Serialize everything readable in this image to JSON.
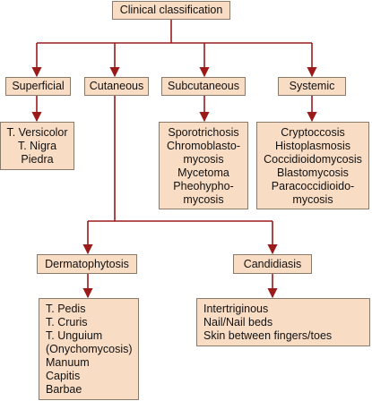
{
  "root": "Clinical classification",
  "categories": {
    "superficial": {
      "label": "Superficial",
      "items": [
        "T. Versicolor",
        "T. Nigra",
        "Piedra"
      ]
    },
    "cutaneous": {
      "label": "Cutaneous"
    },
    "subcutaneous": {
      "label": "Subcutaneous",
      "items": [
        "Sporotrichosis",
        "Chromoblasto-",
        "mycosis",
        "Mycetoma",
        "Pheohypho-",
        "mycosis"
      ]
    },
    "systemic": {
      "label": "Systemic",
      "items": [
        "Cryptoccosis",
        "Histoplasmosis",
        "Coccidioidomycosis",
        "Blastomycosis",
        "Paracoccidioido-",
        "mycosis"
      ]
    }
  },
  "cutaneous_types": {
    "dermatophytosis": {
      "label": "Dermatophytosis",
      "items": [
        "T. Pedis",
        "T. Cruris",
        "T. Unguium",
        "(Onychomycosis)",
        "Manuum",
        "Capitis",
        "Barbae"
      ]
    },
    "candidiasis": {
      "label": "Candidiasis",
      "items": [
        "Intertriginous",
        "Nail/Nail beds",
        "Skin between fingers/toes"
      ]
    }
  },
  "colors": {
    "box_fill": "#f9dcc4",
    "box_border": "#8a7a6a",
    "connector": "#9b1b1b"
  }
}
